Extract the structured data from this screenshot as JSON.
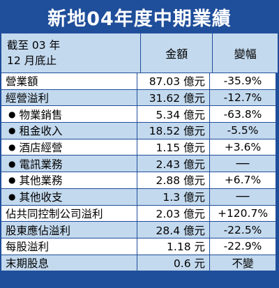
{
  "title": "新地04年度中期業績",
  "header": {
    "label_line1": "截至 03 年",
    "label_line2": "12 月底止",
    "col_amount": "金額",
    "col_change": "變幅"
  },
  "rows": [
    {
      "name": "營業額",
      "amount": "87.03 億元",
      "change": "-35.9%",
      "sub": false
    },
    {
      "name": "經營溢利",
      "amount": "31.62 億元",
      "change": "-12.7%",
      "sub": false
    },
    {
      "name": "物業銷售",
      "amount": "5.34 億元",
      "change": "-63.8%",
      "sub": true
    },
    {
      "name": "租金收入",
      "amount": "18.52 億元",
      "change": "-5.5%",
      "sub": true
    },
    {
      "name": "酒店經營",
      "amount": "1.15 億元",
      "change": "+3.6%",
      "sub": true
    },
    {
      "name": "電訊業務",
      "amount": "2.43 億元",
      "change": "──",
      "sub": true
    },
    {
      "name": "其他業務",
      "amount": "2.88 億元",
      "change": "+6.7%",
      "sub": true
    },
    {
      "name": "其他收支",
      "amount": "1.3 億元",
      "change": "──",
      "sub": true
    },
    {
      "name": "佔共同控制公司溢利",
      "amount": "2.03 億元",
      "change": "+120.7%",
      "sub": false
    },
    {
      "name": "股東應佔溢利",
      "amount": "28.4 億元",
      "change": "-22.5%",
      "sub": false
    },
    {
      "name": "每股溢利",
      "amount": "1.18 元",
      "change": "-22.9%",
      "sub": false
    },
    {
      "name": "末期股息",
      "amount": "0.6 元",
      "change": "不變",
      "sub": false
    }
  ]
}
